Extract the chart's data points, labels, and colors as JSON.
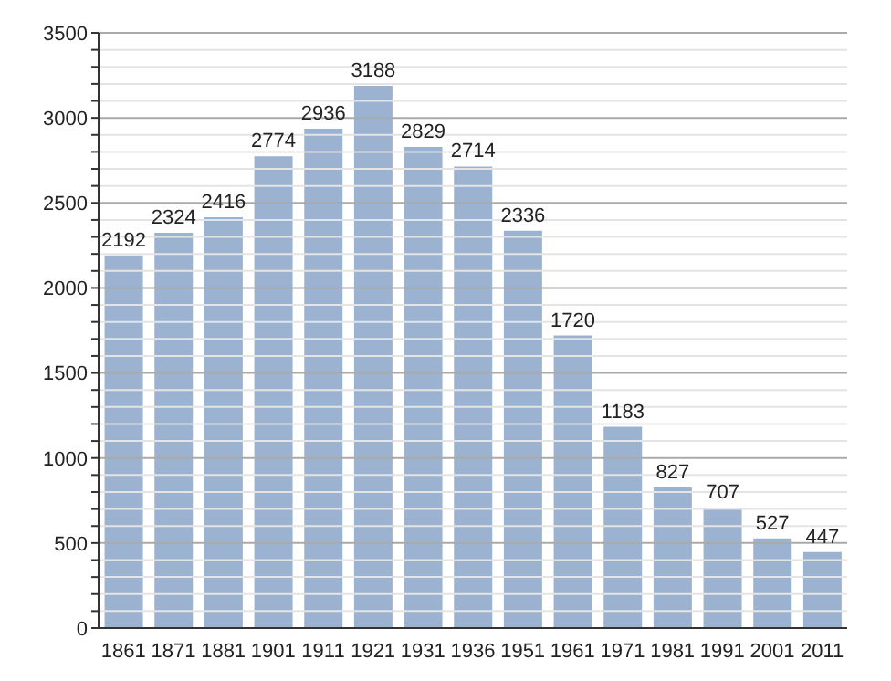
{
  "chart_data": {
    "type": "bar",
    "categories": [
      "1861",
      "1871",
      "1881",
      "1901",
      "1911",
      "1921",
      "1931",
      "1936",
      "1951",
      "1961",
      "1971",
      "1981",
      "1991",
      "2001",
      "2011"
    ],
    "values": [
      2192,
      2324,
      2416,
      2774,
      2936,
      3188,
      2829,
      2714,
      2336,
      1720,
      1183,
      827,
      707,
      527,
      447
    ],
    "color": "#9bb3d0",
    "data_labels": true,
    "grid": "y",
    "ylim": [
      0,
      3500
    ],
    "yticks": [
      0,
      {
        "value": 100,
        "label": null
      },
      {
        "value": 200,
        "label": null
      },
      {
        "value": 300,
        "label": null
      },
      {
        "value": 400,
        "label": null
      },
      500,
      {
        "value": 600,
        "label": null
      },
      {
        "value": 700,
        "label": null
      },
      {
        "value": 800,
        "label": null
      },
      {
        "value": 900,
        "label": null
      },
      1000,
      {
        "value": 1100,
        "label": null
      },
      {
        "value": 1200,
        "label": null
      },
      {
        "value": 1300,
        "label": null
      },
      {
        "value": 1400,
        "label": null
      },
      1500,
      {
        "value": 1600,
        "label": null
      },
      {
        "value": 1700,
        "label": null
      },
      {
        "value": 1800,
        "label": null
      },
      {
        "value": 1900,
        "label": null
      },
      2000,
      {
        "value": 2100,
        "label": null
      },
      {
        "value": 2200,
        "label": null
      },
      {
        "value": 2300,
        "label": null
      },
      {
        "value": 2400,
        "label": null
      },
      2500,
      {
        "value": 2600,
        "label": null
      },
      {
        "value": 2700,
        "label": null
      },
      {
        "value": 2800,
        "label": null
      },
      {
        "value": 2900,
        "label": null
      },
      3000,
      {
        "value": 3100,
        "label": null
      },
      {
        "value": 3200,
        "label": null
      },
      {
        "value": 3300,
        "label": null
      },
      {
        "value": 3400,
        "label": null
      },
      3500
    ]
  }
}
